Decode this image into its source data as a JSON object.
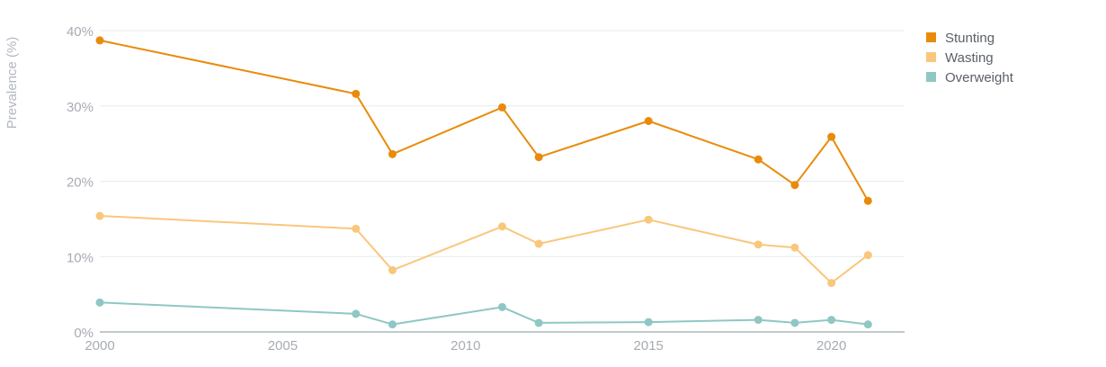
{
  "chart_data": {
    "type": "line",
    "title": "",
    "xlabel": "",
    "ylabel": "Prevalence (%)",
    "xlim": [
      2000,
      2022
    ],
    "ylim": [
      0,
      40
    ],
    "x_ticks": [
      2000,
      2005,
      2010,
      2015,
      2020
    ],
    "x_tick_labels": [
      "2000",
      "2005",
      "2010",
      "2015",
      "2020"
    ],
    "y_ticks": [
      0,
      10,
      20,
      30,
      40
    ],
    "y_tick_labels": [
      "0%",
      "10%",
      "20%",
      "30%",
      "40%"
    ],
    "grid": true,
    "legend_position": "top-right",
    "series": [
      {
        "name": "Stunting",
        "color": "#e98b0a",
        "x": [
          2000,
          2007,
          2008,
          2011,
          2012,
          2015,
          2018,
          2019,
          2020,
          2021
        ],
        "values": [
          38.7,
          31.6,
          23.6,
          29.8,
          23.2,
          28.0,
          22.9,
          19.5,
          25.9,
          17.4
        ]
      },
      {
        "name": "Wasting",
        "color": "#f9c77c",
        "x": [
          2000,
          2007,
          2008,
          2011,
          2012,
          2015,
          2018,
          2019,
          2020,
          2021
        ],
        "values": [
          15.4,
          13.7,
          8.2,
          14.0,
          11.7,
          14.9,
          11.6,
          11.2,
          6.5,
          10.2
        ]
      },
      {
        "name": "Overweight",
        "color": "#8fc7c4",
        "x": [
          2000,
          2007,
          2008,
          2011,
          2012,
          2015,
          2018,
          2019,
          2020,
          2021
        ],
        "values": [
          3.9,
          2.4,
          1.0,
          3.3,
          1.2,
          1.3,
          1.6,
          1.2,
          1.6,
          1.0
        ]
      }
    ]
  }
}
